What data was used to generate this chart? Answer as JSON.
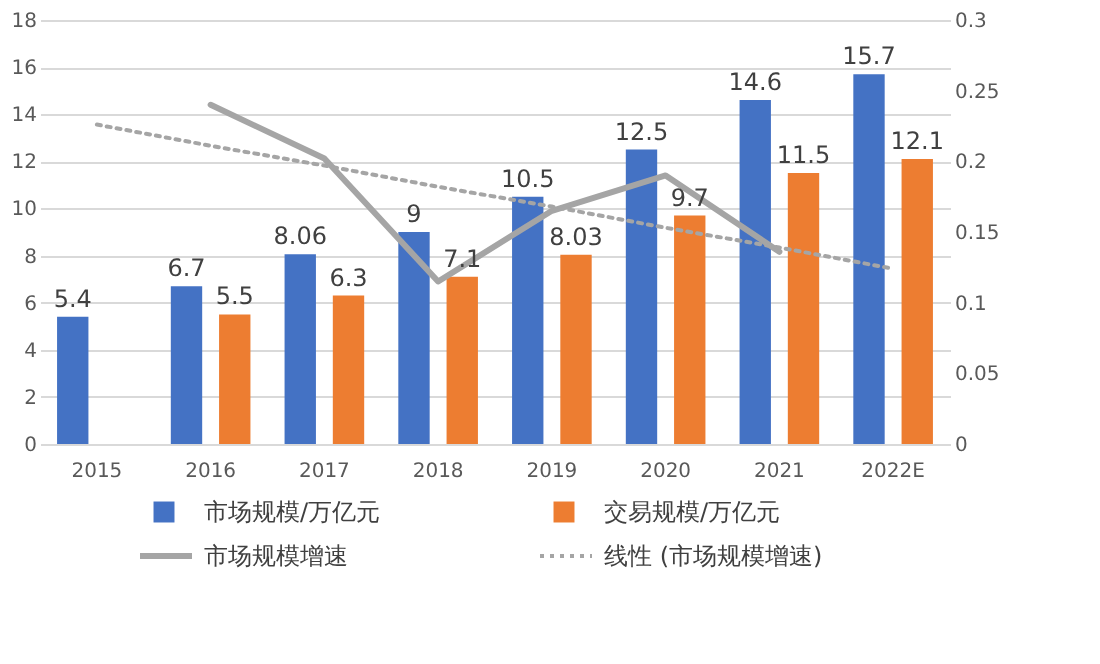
{
  "chart_data": {
    "type": "bar",
    "categories": [
      "2015",
      "2016",
      "2017",
      "2018",
      "2019",
      "2020",
      "2021",
      "2022E"
    ],
    "series": [
      {
        "name": "市场规模/万亿元",
        "type": "bar",
        "color": "#4472c4",
        "values": [
          5.4,
          6.7,
          8.06,
          9,
          10.5,
          12.5,
          14.6,
          15.7
        ],
        "value_labels": [
          "5.4",
          "6.7",
          "8.06",
          "9",
          "10.5",
          "12.5",
          "14.6",
          "15.7"
        ]
      },
      {
        "name": "交易规模/万亿元",
        "type": "bar",
        "color": "#ed7d31",
        "values": [
          null,
          5.5,
          6.3,
          7.1,
          8.03,
          9.7,
          11.5,
          12.1
        ],
        "value_labels": [
          null,
          "5.5",
          "6.3",
          "7.1",
          "8.03",
          "9.7",
          "11.5",
          "12.1"
        ]
      },
      {
        "name": "市场规模增速",
        "type": "line",
        "axis": "y2",
        "color": "#a5a5a5",
        "line_style": "solid",
        "values": [
          null,
          0.24,
          0.202,
          0.115,
          0.165,
          0.19,
          0.136,
          null
        ]
      },
      {
        "name": "线性 (市场规模增速)",
        "type": "line",
        "axis": "y2",
        "color": "#a5a5a5",
        "line_style": "dotted",
        "values": [
          0.226,
          0.211,
          0.197,
          0.182,
          0.168,
          0.153,
          0.139,
          0.124
        ]
      }
    ],
    "ylim": [
      0,
      18
    ],
    "yticks": [
      0,
      2,
      4,
      6,
      8,
      10,
      12,
      14,
      16,
      18
    ],
    "y2lim": [
      0,
      0.3
    ],
    "y2ticks": [
      0,
      0.05,
      0.1,
      0.15,
      0.2,
      0.25,
      0.3
    ],
    "grid": "y",
    "legend": "bottom"
  }
}
